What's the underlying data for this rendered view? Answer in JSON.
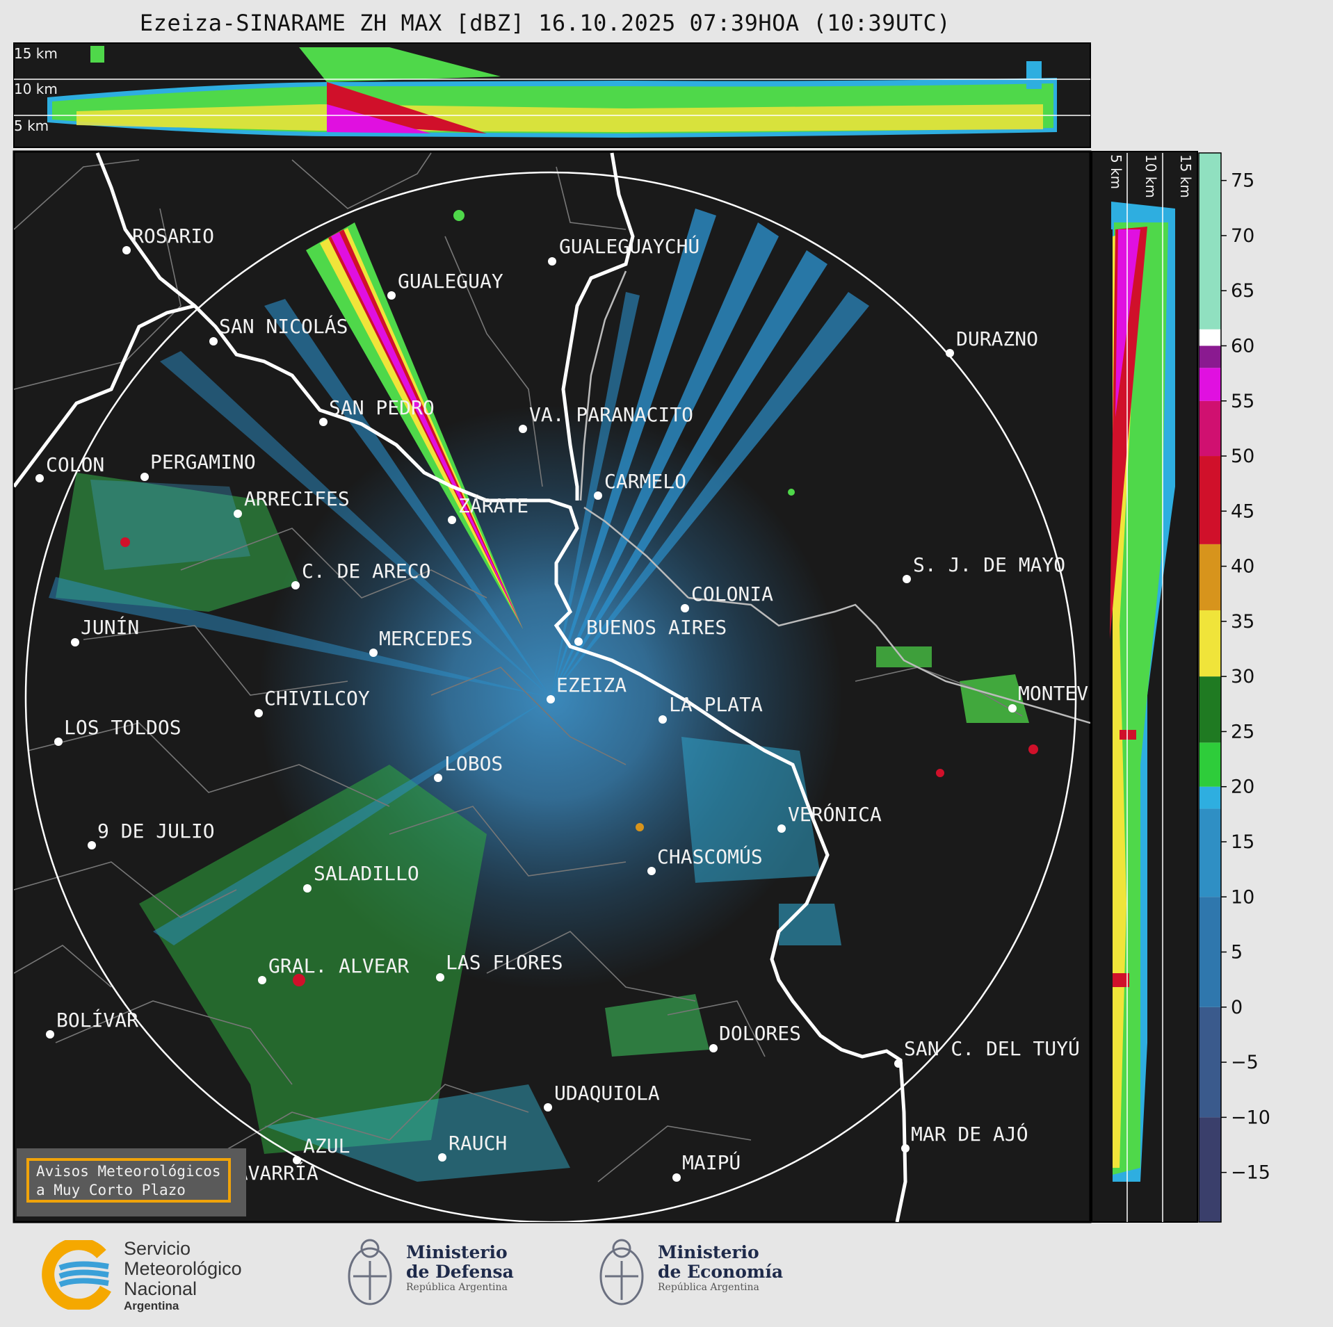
{
  "header": {
    "title": "Ezeiza-SINARAME ZH MAX [dBZ] 16.10.2025 07:39HOA (10:39UTC)"
  },
  "top_panel": {
    "height_labels": [
      "15 km",
      "10 km",
      "5 km"
    ]
  },
  "side_panel": {
    "height_labels": [
      "5 km",
      "10 km",
      "15 km"
    ]
  },
  "colorbar": {
    "ticks": [
      "75",
      "70",
      "65",
      "60",
      "55",
      "50",
      "45",
      "40",
      "35",
      "30",
      "25",
      "20",
      "15",
      "10",
      "5",
      "0",
      "−5",
      "−10",
      "−15"
    ],
    "colors": {
      "low": "#3a3f6b",
      "blue": "#2f8fc4",
      "cyan": "#2eaee0",
      "green": "#2ecc3a",
      "darkgreen": "#1f7a22",
      "yellow": "#f0e43a",
      "orange": "#d7941c",
      "red": "#d0102a",
      "magenta": "#e010e0",
      "purple": "#8a1a90",
      "white": "#ffffff",
      "mint": "#90e0c0"
    }
  },
  "map": {
    "background": "#1a1a1a",
    "places": [
      "ROSARIO",
      "GUALEGUAYCHÚ",
      "GUALEGUAY",
      "SAN NICOLÁS",
      "DURAZNO",
      "SAN PEDRO",
      "VA. PARANACITO",
      "COLON",
      "PERGAMINO",
      "CARMELO",
      "ARRECIFES",
      "ZÁRATE",
      "S. J. DE MAYO",
      "C. DE ARECO",
      "COLONIA",
      "BUENOS AIRES",
      "JUNÍN",
      "MERCEDES",
      "EZEIZA",
      "MONTEV",
      "CHIVILCOY",
      "LA PLATA",
      "LOS TOLDOS",
      "LOBOS",
      "VERÓNICA",
      "9 DE JULIO",
      "CHASCOMÚS",
      "SALADILLO",
      "GRAL. ALVEAR",
      "LAS FLORES",
      "BOLÍVAR",
      "DOLORES",
      "SAN C. DEL TUYÚ",
      "UDAQUIOLA",
      "MAR DE AJÓ",
      "AZUL",
      "RAUCH",
      "OLAVARRÍA",
      "MAIPÚ"
    ]
  },
  "notice": {
    "line1": "Avisos Meteorológicos",
    "line2": "a Muy Corto Plazo"
  },
  "footer": {
    "smn": {
      "line1": "Servicio",
      "line2": "Meteorológico",
      "line3": "Nacional",
      "line4": "Argentina"
    },
    "defensa": {
      "line1": "Ministerio",
      "line2": "de Defensa",
      "line3": "República Argentina"
    },
    "economia": {
      "line1": "Ministerio",
      "line2": "de Economía",
      "line3": "República Argentina"
    }
  }
}
